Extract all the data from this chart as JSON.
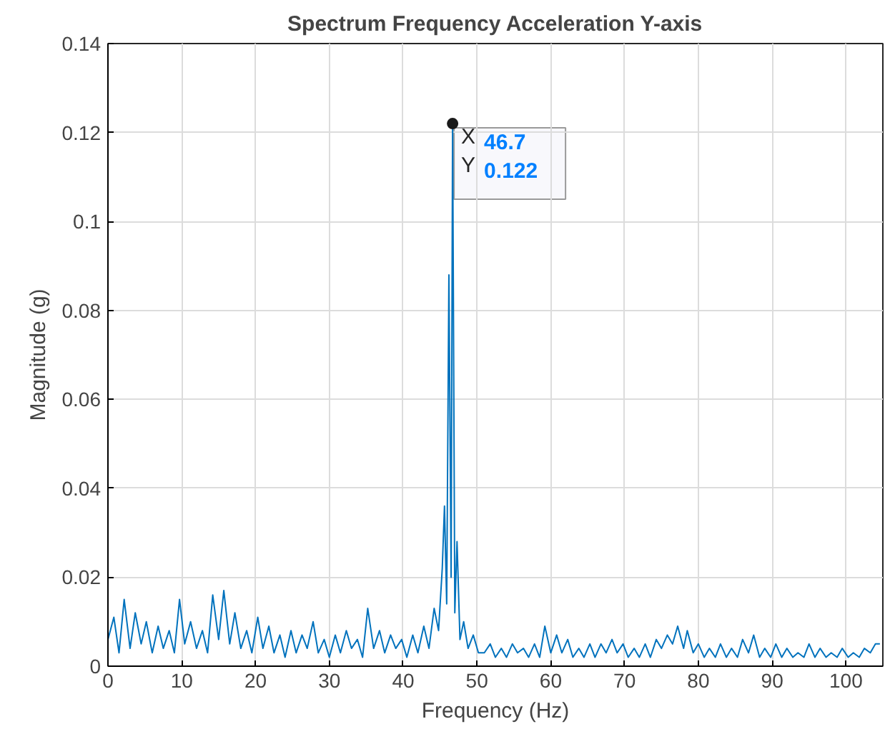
{
  "chart_data": {
    "type": "line",
    "title": "Spectrum Frequency Acceleration Y-axis",
    "xlabel": "Frequency (Hz)",
    "ylabel": "Magnitude (g)",
    "x": [
      0,
      0.8,
      1.5,
      2.2,
      3,
      3.7,
      4.5,
      5.2,
      6,
      6.8,
      7.5,
      8.3,
      9,
      9.7,
      10.4,
      11.2,
      12,
      12.8,
      13.5,
      14.2,
      15,
      15.7,
      16.5,
      17.2,
      18,
      18.8,
      19.5,
      20.3,
      21,
      21.8,
      22.5,
      23.3,
      24,
      24.8,
      25.5,
      26.3,
      27,
      27.8,
      28.5,
      29.3,
      30,
      30.8,
      31.5,
      32.3,
      33,
      33.8,
      34.5,
      35.2,
      36,
      36.8,
      37.5,
      38.3,
      39,
      39.8,
      40.5,
      41.3,
      42,
      42.8,
      43.5,
      44.2,
      44.8,
      45.3,
      45.6,
      45.9,
      46.2,
      46.5,
      46.7,
      47,
      47.3,
      47.7,
      48.2,
      48.8,
      49.5,
      50.2,
      51,
      51.8,
      52.5,
      53.3,
      54,
      54.8,
      55.5,
      56.3,
      57,
      57.8,
      58.5,
      59.2,
      60,
      60.8,
      61.5,
      62.3,
      63,
      63.8,
      64.5,
      65.3,
      66,
      66.8,
      67.5,
      68.3,
      69,
      69.8,
      70.5,
      71.3,
      72,
      72.8,
      73.5,
      74.3,
      75,
      75.8,
      76.5,
      77.2,
      78,
      78.5,
      79.3,
      80,
      80.8,
      81.5,
      82.3,
      83,
      83.8,
      84.5,
      85.3,
      86,
      86.8,
      87.5,
      88.3,
      89,
      89.8,
      90.5,
      91.3,
      92,
      92.8,
      93.5,
      94.3,
      95,
      95.8,
      96.5,
      97.3,
      98,
      98.8,
      99.5,
      100.3,
      101,
      101.8,
      102.5,
      103.3,
      104,
      104.6
    ],
    "series": [
      {
        "color": "#0072bd",
        "values": [
          0.006,
          0.011,
          0.003,
          0.015,
          0.004,
          0.012,
          0.005,
          0.01,
          0.003,
          0.009,
          0.004,
          0.008,
          0.003,
          0.015,
          0.005,
          0.01,
          0.004,
          0.008,
          0.003,
          0.016,
          0.006,
          0.017,
          0.005,
          0.012,
          0.004,
          0.008,
          0.003,
          0.011,
          0.004,
          0.009,
          0.003,
          0.007,
          0.002,
          0.008,
          0.003,
          0.007,
          0.004,
          0.01,
          0.003,
          0.006,
          0.002,
          0.007,
          0.003,
          0.008,
          0.004,
          0.006,
          0.002,
          0.013,
          0.004,
          0.008,
          0.003,
          0.007,
          0.004,
          0.006,
          0.002,
          0.007,
          0.003,
          0.009,
          0.004,
          0.013,
          0.008,
          0.022,
          0.036,
          0.014,
          0.088,
          0.02,
          0.122,
          0.012,
          0.028,
          0.006,
          0.01,
          0.004,
          0.007,
          0.003,
          0.003,
          0.005,
          0.002,
          0.004,
          0.002,
          0.005,
          0.003,
          0.004,
          0.002,
          0.005,
          0.002,
          0.009,
          0.003,
          0.007,
          0.003,
          0.006,
          0.002,
          0.004,
          0.002,
          0.005,
          0.002,
          0.005,
          0.003,
          0.006,
          0.003,
          0.005,
          0.002,
          0.004,
          0.002,
          0.005,
          0.002,
          0.006,
          0.004,
          0.007,
          0.005,
          0.009,
          0.004,
          0.008,
          0.003,
          0.005,
          0.002,
          0.004,
          0.002,
          0.005,
          0.002,
          0.004,
          0.002,
          0.006,
          0.003,
          0.007,
          0.002,
          0.004,
          0.002,
          0.005,
          0.002,
          0.004,
          0.002,
          0.003,
          0.002,
          0.005,
          0.002,
          0.004,
          0.002,
          0.003,
          0.002,
          0.004,
          0.002,
          0.003,
          0.002,
          0.004,
          0.003,
          0.005,
          0.005
        ]
      }
    ],
    "xlim": [
      0,
      105
    ],
    "ylim": [
      0,
      0.14
    ],
    "xticks": [
      0,
      10,
      20,
      30,
      40,
      50,
      60,
      70,
      80,
      90,
      100
    ],
    "yticks": [
      0,
      0.02,
      0.04,
      0.06,
      0.08,
      0.1,
      0.12,
      0.14
    ],
    "grid": true,
    "annotations": [
      {
        "text": "X 46.7",
        "x": 46.7,
        "y": 0.122
      },
      {
        "text": "Y 0.122",
        "x": 46.7,
        "y": 0.122
      }
    ]
  }
}
